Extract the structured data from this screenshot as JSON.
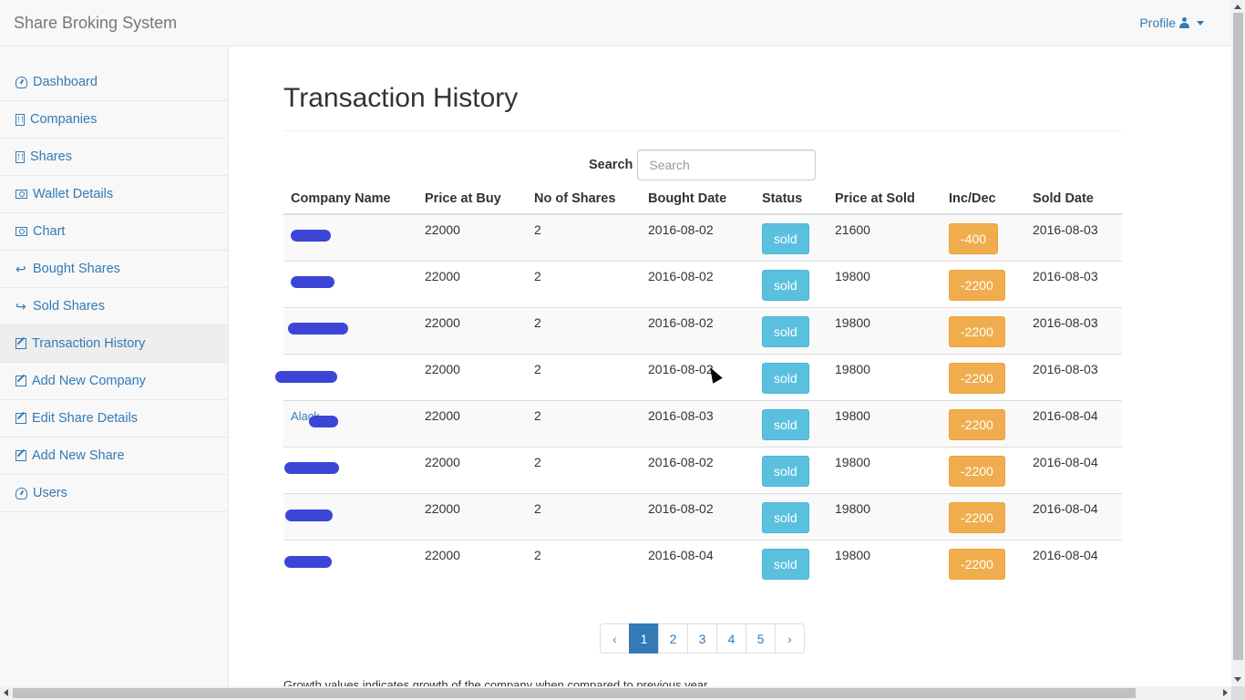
{
  "app": {
    "brand": "Share Broking System",
    "profile_label": "Profile"
  },
  "sidebar": {
    "items": [
      {
        "label": "Dashboard",
        "icon": "dashboard-icon"
      },
      {
        "label": "Companies",
        "icon": "building-icon"
      },
      {
        "label": "Shares",
        "icon": "building-icon"
      },
      {
        "label": "Wallet Details",
        "icon": "money-icon"
      },
      {
        "label": "Chart",
        "icon": "money-icon"
      },
      {
        "label": "Bought Shares",
        "icon": "reply-icon"
      },
      {
        "label": "Sold Shares",
        "icon": "share-icon"
      },
      {
        "label": "Transaction History",
        "icon": "history-icon",
        "active": true
      },
      {
        "label": "Add New Company",
        "icon": "edit-icon"
      },
      {
        "label": "Edit Share Details",
        "icon": "edit-icon"
      },
      {
        "label": "Add New Share",
        "icon": "edit-icon"
      },
      {
        "label": "Users",
        "icon": "dashboard-icon"
      }
    ]
  },
  "main": {
    "title": "Transaction History",
    "search": {
      "label": "Search",
      "placeholder": "Search",
      "value": ""
    },
    "table": {
      "headers": [
        "Company Name",
        "Price at Buy",
        "No of Shares",
        "Bought Date",
        "Status",
        "Price at Sold",
        "Inc/Dec",
        "Sold Date"
      ],
      "rows": [
        {
          "company": "[redacted]",
          "price_buy": "22000",
          "shares": "2",
          "bought": "2016-08-02",
          "status": "sold",
          "price_sold": "21600",
          "incdec": "-400",
          "sold": "2016-08-03"
        },
        {
          "company": "[redacted]",
          "price_buy": "22000",
          "shares": "2",
          "bought": "2016-08-02",
          "status": "sold",
          "price_sold": "19800",
          "incdec": "-2200",
          "sold": "2016-08-03"
        },
        {
          "company": "[redacted]",
          "price_buy": "22000",
          "shares": "2",
          "bought": "2016-08-02",
          "status": "sold",
          "price_sold": "19800",
          "incdec": "-2200",
          "sold": "2016-08-03"
        },
        {
          "company": "[redacted]",
          "price_buy": "22000",
          "shares": "2",
          "bought": "2016-08-02",
          "status": "sold",
          "price_sold": "19800",
          "incdec": "-2200",
          "sold": "2016-08-03"
        },
        {
          "company": "Alack[redacted]",
          "price_buy": "22000",
          "shares": "2",
          "bought": "2016-08-03",
          "status": "sold",
          "price_sold": "19800",
          "incdec": "-2200",
          "sold": "2016-08-04"
        },
        {
          "company": "[redacted]",
          "price_buy": "22000",
          "shares": "2",
          "bought": "2016-08-02",
          "status": "sold",
          "price_sold": "19800",
          "incdec": "-2200",
          "sold": "2016-08-04"
        },
        {
          "company": "[redacted]",
          "price_buy": "22000",
          "shares": "2",
          "bought": "2016-08-02",
          "status": "sold",
          "price_sold": "19800",
          "incdec": "-2200",
          "sold": "2016-08-04"
        },
        {
          "company": "[redacted]",
          "price_buy": "22000",
          "shares": "2",
          "bought": "2016-08-04",
          "status": "sold",
          "price_sold": "19800",
          "incdec": "-2200",
          "sold": "2016-08-04"
        }
      ]
    },
    "pagination": {
      "prev": "‹",
      "pages": [
        "1",
        "2",
        "3",
        "4",
        "5"
      ],
      "active": "1",
      "next": "›"
    },
    "footnote": "Growth values indicates growth of the company when compared to previous year"
  },
  "colors": {
    "link": "#337ab7",
    "status_badge": "#5bc0de",
    "incdec_badge": "#f0ad4e",
    "redaction": "#3c45d6"
  }
}
